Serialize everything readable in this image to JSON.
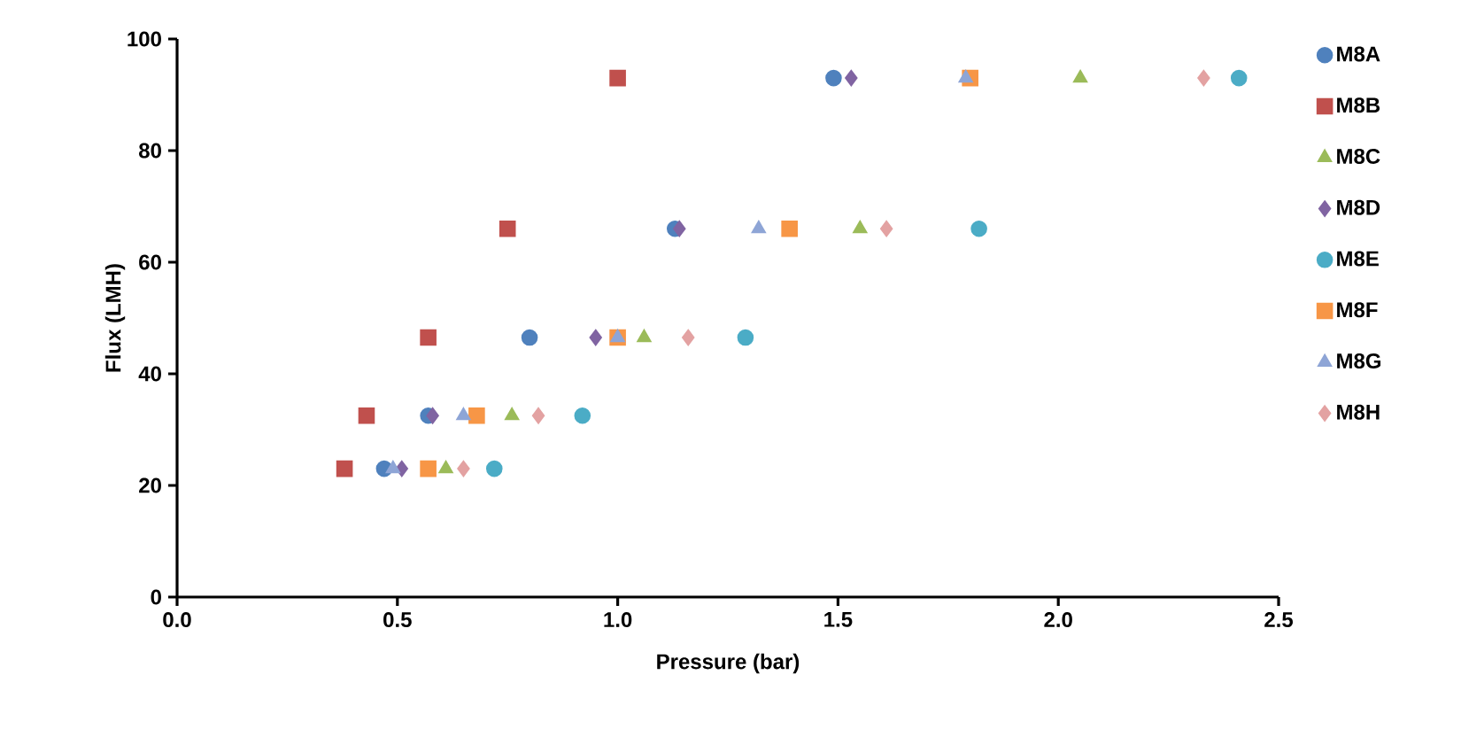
{
  "chart_data": {
    "type": "scatter",
    "xlabel": "Pressure (bar)",
    "ylabel": "Flux (LMH)",
    "xlim": [
      0,
      2.5
    ],
    "ylim": [
      0,
      100
    ],
    "xticks": [
      {
        "value": 0,
        "label": "0.0"
      },
      {
        "value": 0.5,
        "label": "0.5"
      },
      {
        "value": 1,
        "label": "1.0"
      },
      {
        "value": 1.5,
        "label": "1.5"
      },
      {
        "value": 2,
        "label": "2.0"
      },
      {
        "value": 2.5,
        "label": "2.5"
      }
    ],
    "yticks": [
      0,
      20,
      40,
      60,
      80,
      100
    ],
    "grid": false,
    "legend": "right",
    "series": [
      {
        "name": "M8A",
        "color": "#4f81bd",
        "marker": "circle",
        "x": [
          0.47,
          0.57,
          0.8,
          1.13,
          1.49
        ],
        "values": [
          23,
          32.5,
          46.5,
          66,
          93
        ]
      },
      {
        "name": "M8B",
        "color": "#c0504d",
        "marker": "square",
        "x": [
          0.38,
          0.43,
          0.57,
          0.75,
          1.0
        ],
        "values": [
          23,
          32.5,
          46.5,
          66,
          93
        ]
      },
      {
        "name": "M8C",
        "color": "#9bbb59",
        "marker": "triangle",
        "x": [
          0.61,
          0.76,
          1.06,
          1.55,
          2.05
        ],
        "values": [
          23,
          32.5,
          46.5,
          66,
          93
        ]
      },
      {
        "name": "M8D",
        "color": "#8064a2",
        "marker": "diamond",
        "x": [
          0.51,
          0.58,
          0.95,
          1.14,
          1.53
        ],
        "values": [
          23,
          32.5,
          46.5,
          66,
          93
        ]
      },
      {
        "name": "M8E",
        "color": "#4bacc6",
        "marker": "circle",
        "x": [
          0.72,
          0.92,
          1.29,
          1.82,
          2.41
        ],
        "values": [
          23,
          32.5,
          46.5,
          66,
          93
        ]
      },
      {
        "name": "M8F",
        "color": "#f79646",
        "marker": "square",
        "x": [
          0.57,
          0.68,
          1.0,
          1.39,
          1.8
        ],
        "values": [
          23,
          32.5,
          46.5,
          66,
          93
        ]
      },
      {
        "name": "M8G",
        "color": "#8ea5d6",
        "marker": "triangle",
        "x": [
          0.49,
          0.65,
          1.0,
          1.32,
          1.79
        ],
        "values": [
          23,
          32.5,
          46.5,
          66,
          93
        ]
      },
      {
        "name": "M8H",
        "color": "#e3a2a2",
        "marker": "diamond",
        "x": [
          0.65,
          0.82,
          1.16,
          1.61,
          2.33
        ],
        "values": [
          23,
          32.5,
          46.5,
          66,
          93
        ]
      }
    ]
  }
}
